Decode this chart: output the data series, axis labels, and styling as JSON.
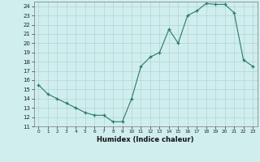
{
  "x": [
    0,
    1,
    2,
    3,
    4,
    5,
    6,
    7,
    8,
    9,
    10,
    11,
    12,
    13,
    14,
    15,
    16,
    17,
    18,
    19,
    20,
    21,
    22,
    23
  ],
  "y": [
    15.5,
    14.5,
    14.0,
    13.5,
    13.0,
    12.5,
    12.2,
    12.2,
    11.5,
    11.5,
    14.0,
    17.5,
    18.5,
    19.0,
    21.5,
    20.0,
    23.0,
    23.5,
    24.3,
    24.2,
    24.2,
    23.3,
    18.2,
    17.5
  ],
  "xlabel": "Humidex (Indice chaleur)",
  "xlim": [
    -0.5,
    23.5
  ],
  "ylim": [
    11,
    24.5
  ],
  "yticks": [
    11,
    12,
    13,
    14,
    15,
    16,
    17,
    18,
    19,
    20,
    21,
    22,
    23,
    24
  ],
  "xticks": [
    0,
    1,
    2,
    3,
    4,
    5,
    6,
    7,
    8,
    9,
    10,
    11,
    12,
    13,
    14,
    15,
    16,
    17,
    18,
    19,
    20,
    21,
    22,
    23
  ],
  "line_color": "#2a7a62",
  "bg_color": "#d0eeee",
  "grid_color": "#aacece"
}
